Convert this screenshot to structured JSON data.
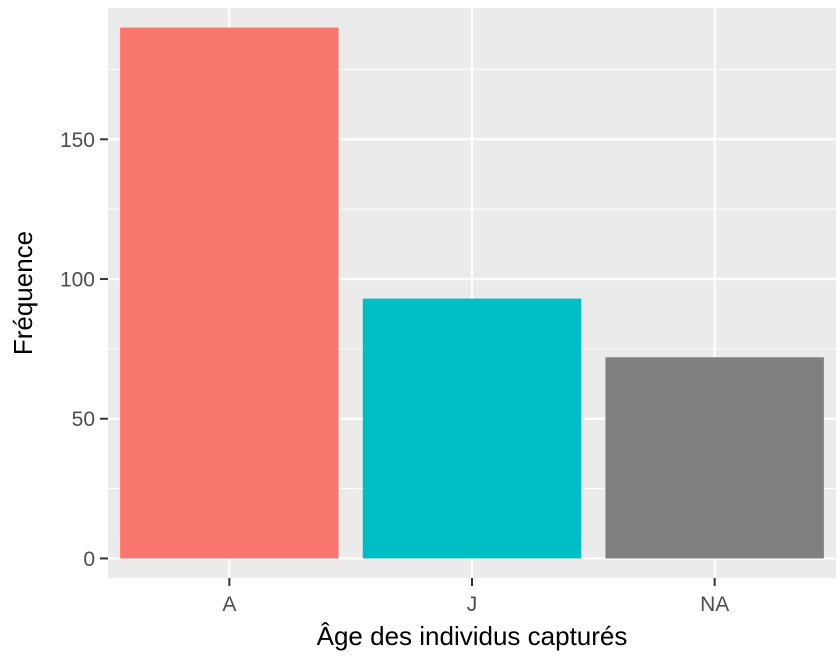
{
  "chart_data": {
    "type": "bar",
    "title": "",
    "xlabel": "Âge des individus capturés",
    "ylabel": "Fréquence",
    "categories": [
      "A",
      "J",
      "NA"
    ],
    "values": [
      190,
      93,
      72
    ],
    "bar_colors": [
      "#F8766D",
      "#00BFC4",
      "#7F7F7F"
    ],
    "ylim": [
      -7,
      197
    ],
    "yticks": [
      0,
      50,
      100,
      150
    ],
    "yminor": [
      25,
      75,
      125,
      175
    ],
    "grid": true,
    "legend": "none",
    "panel_background": "#EBEBEB",
    "grid_color": "#FFFFFF"
  }
}
